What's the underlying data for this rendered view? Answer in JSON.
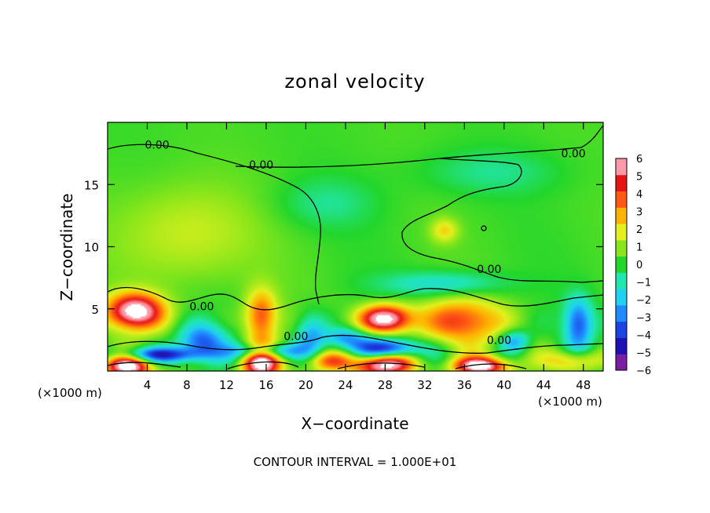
{
  "chart_data": {
    "type": "heatmap",
    "title": "zonal velocity",
    "xlabel": "X−coordinate",
    "ylabel": "Z−coordinate",
    "x_unit_left": "(×1000 m)",
    "x_unit_right": "(×1000 m)",
    "xlim": [
      0,
      50
    ],
    "ylim": [
      0,
      20
    ],
    "x_ticks": [
      4,
      8,
      12,
      16,
      20,
      24,
      28,
      32,
      36,
      40,
      44,
      48
    ],
    "x_tick_labels": [
      "4",
      "8",
      "12",
      "16",
      "20",
      "24",
      "28",
      "32",
      "36",
      "40",
      "44",
      "48"
    ],
    "y_ticks": [
      5,
      10,
      15
    ],
    "y_tick_labels": [
      "5",
      "10",
      "15"
    ],
    "colorbar": {
      "min": -6,
      "max": 6,
      "labels": [
        "6",
        "5",
        "4",
        "3",
        "2",
        "1",
        "0",
        "−1",
        "−2",
        "−3",
        "−4",
        "−5",
        "−6"
      ],
      "colors": [
        "#7a1fa2",
        "#1e12b4",
        "#1c44e4",
        "#1f8bff",
        "#1fd2f0",
        "#20e6b0",
        "#22d62c",
        "#8ae61a",
        "#e4f01e",
        "#ffb300",
        "#ff5a14",
        "#e61414",
        "#ff9aa8"
      ]
    },
    "contour_labels": [
      {
        "text": "0.00",
        "x": 5,
        "y": 18.2
      },
      {
        "text": "0.00",
        "x": 15.5,
        "y": 16.6
      },
      {
        "text": "0.00",
        "x": 47.0,
        "y": 17.5
      },
      {
        "text": "0.00",
        "x": 9.5,
        "y": 5.2
      },
      {
        "text": "0.00",
        "x": 38.5,
        "y": 8.2
      },
      {
        "text": "0.00",
        "x": 19.0,
        "y": 2.8
      },
      {
        "text": "0.00",
        "x": 39.5,
        "y": 2.5
      }
    ],
    "anomalies": [
      {
        "x": 2.8,
        "y": 4.8,
        "v": 7,
        "rx": 2.8,
        "ry": 1.4
      },
      {
        "x": 2.0,
        "y": 0.4,
        "v": 7,
        "rx": 2.2,
        "ry": 0.9
      },
      {
        "x": 15.5,
        "y": 4.3,
        "v": 4,
        "rx": 1.6,
        "ry": 2.2
      },
      {
        "x": 15.5,
        "y": 0.6,
        "v": 7,
        "rx": 2.0,
        "ry": 1.4
      },
      {
        "x": 28.0,
        "y": 4.2,
        "v": 7,
        "rx": 2.6,
        "ry": 1.1
      },
      {
        "x": 28.0,
        "y": 0.5,
        "v": 7,
        "rx": 3.0,
        "ry": 0.9
      },
      {
        "x": 35.5,
        "y": 4.0,
        "v": 4,
        "rx": 4.2,
        "ry": 1.8
      },
      {
        "x": 37.5,
        "y": 0.4,
        "v": 7,
        "rx": 2.6,
        "ry": 0.7
      },
      {
        "x": 22.5,
        "y": 0.8,
        "v": 3,
        "rx": 2.4,
        "ry": 0.8
      },
      {
        "x": 47.0,
        "y": 0.8,
        "v": 3,
        "rx": 2.8,
        "ry": 0.9
      },
      {
        "x": 34.0,
        "y": 11.3,
        "v": 2,
        "rx": 1.4,
        "ry": 1.0
      },
      {
        "x": 9.5,
        "y": 2.3,
        "v": -4,
        "rx": 2.3,
        "ry": 1.4
      },
      {
        "x": 5.0,
        "y": 1.3,
        "v": -5,
        "rx": 4.0,
        "ry": 0.6
      },
      {
        "x": 20.5,
        "y": 2.8,
        "v": -3,
        "rx": 1.6,
        "ry": 1.8
      },
      {
        "x": 24.0,
        "y": 2.7,
        "v": -3,
        "rx": 2.2,
        "ry": 0.8
      },
      {
        "x": 28.0,
        "y": 1.8,
        "v": -5,
        "rx": 3.4,
        "ry": 0.8
      },
      {
        "x": 41.0,
        "y": 2.4,
        "v": -3,
        "rx": 1.6,
        "ry": 0.9
      },
      {
        "x": 47.5,
        "y": 3.8,
        "v": -4,
        "rx": 1.4,
        "ry": 2.0
      },
      {
        "x": 16.0,
        "y": 1.6,
        "v": -4,
        "rx": 3.6,
        "ry": 0.6
      },
      {
        "x": 34.0,
        "y": 7.0,
        "v": -2,
        "rx": 6.0,
        "ry": 1.0
      },
      {
        "x": 22.0,
        "y": 13.5,
        "v": -1,
        "rx": 5.0,
        "ry": 2.0
      },
      {
        "x": 38.5,
        "y": 16.0,
        "v": -1,
        "rx": 7.0,
        "ry": 1.8
      },
      {
        "x": 8.0,
        "y": 11.0,
        "v": 1.5,
        "rx": 7.0,
        "ry": 4.0
      }
    ]
  },
  "footer": {
    "contour_interval": "CONTOUR INTERVAL = 1.000E+01"
  }
}
